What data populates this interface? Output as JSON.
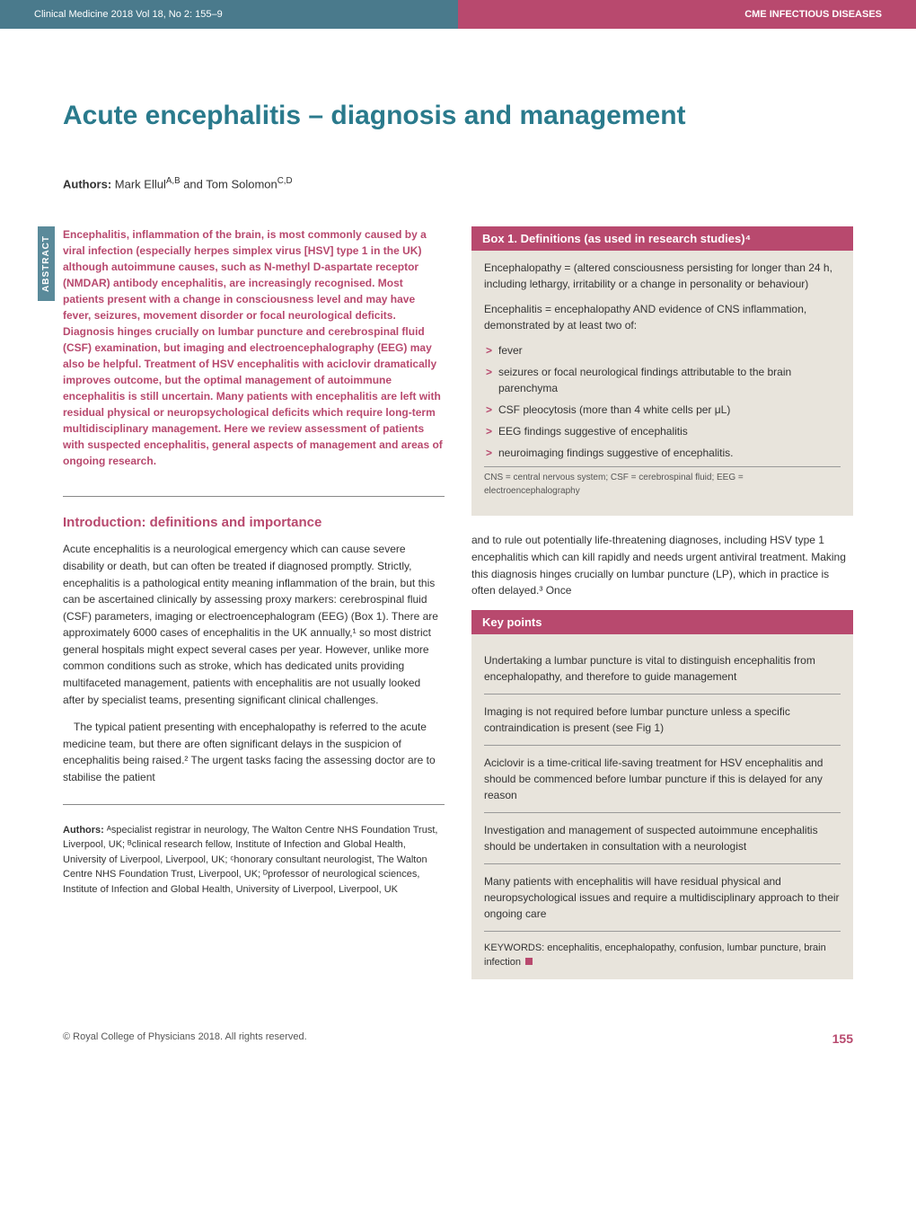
{
  "header": {
    "journal_info": "Clinical Medicine 2018 Vol 18, No 2: 155–9",
    "section": "CME INFECTIOUS DISEASES"
  },
  "title": "Acute encephalitis – diagnosis and management",
  "authors_line": {
    "label": "Authors:",
    "text": "Mark Ellul",
    "sup1": "A,B",
    "text2": " and Tom Solomon",
    "sup2": "C,D"
  },
  "abstract": {
    "tab": "ABSTRACT",
    "text": "Encephalitis, inflammation of the brain, is most commonly caused by a viral infection (especially herpes simplex virus [HSV] type 1 in the UK) although autoimmune causes, such as N-methyl D-aspartate receptor (NMDAR) antibody encephalitis, are increasingly recognised. Most patients present with a change in consciousness level and may have fever, seizures, movement disorder or focal neurological deficits. Diagnosis hinges crucially on lumbar puncture and cerebrospinal fluid (CSF) examination, but imaging and electroencephalography (EEG) may also be helpful. Treatment of HSV encephalitis with aciclovir dramatically improves outcome, but the optimal management of autoimmune encephalitis is still uncertain. Many patients with encephalitis are left with residual physical or neuropsychological deficits which require long-term multidisciplinary management. Here we review assessment of patients with suspected encephalitis, general aspects of management and areas of ongoing research."
  },
  "intro": {
    "heading": "Introduction: definitions and importance",
    "p1": "Acute encephalitis is a neurological emergency which can cause severe disability or death, but can often be treated if diagnosed promptly. Strictly, encephalitis is a pathological entity meaning inflammation of the brain, but this can be ascertained clinically by assessing proxy markers: cerebrospinal fluid (CSF) parameters, imaging or electroencephalogram (EEG) (Box 1). There are approximately 6000 cases of encephalitis in the UK annually,¹ so most district general hospitals might expect several cases per year. However, unlike more common conditions such as stroke, which has dedicated units providing multifaceted management, patients with encephalitis are not usually looked after by specialist teams, presenting significant clinical challenges.",
    "p2": "The typical patient presenting with encephalopathy is referred to the acute medicine team, but there are often significant delays in the suspicion of encephalitis being raised.² The urgent tasks facing the assessing doctor are to stabilise the patient"
  },
  "authors_detail": {
    "label": "Authors:",
    "text": " ᴬspecialist registrar in neurology, The Walton Centre NHS Foundation Trust, Liverpool, UK; ᴮclinical research fellow, Institute of Infection and Global Health, University of Liverpool, Liverpool, UK; ᶜhonorary consultant neurologist, The Walton Centre NHS Foundation Trust, Liverpool, UK; ᴰprofessor of neurological sciences, Institute of Infection and Global Health, University of Liverpool, Liverpool, UK"
  },
  "box1": {
    "title": "Box 1. Definitions (as used in research studies)⁴",
    "p1": "Encephalopathy = (altered consciousness persisting for longer than 24 h, including lethargy, irritability or a change in personality or behaviour)",
    "p2": "Encephalitis = encephalopathy AND evidence of CNS inflammation, demonstrated by at least two of:",
    "items": [
      "fever",
      "seizures or focal neurological findings attributable to the brain parenchyma",
      "CSF pleocytosis (more than 4 white cells per μL)",
      "EEG findings suggestive of encephalitis",
      "neuroimaging findings suggestive of encephalitis."
    ],
    "caption": "CNS = central nervous system; CSF = cerebrospinal fluid; EEG = electroencephalography"
  },
  "right_body": "and to rule out potentially life-threatening diagnoses, including HSV type 1 encephalitis which can kill rapidly and needs urgent antiviral treatment. Making this diagnosis hinges crucially on lumbar puncture (LP), which in practice is often delayed.³ Once",
  "keypoints": {
    "title": "Key points",
    "items": [
      "Undertaking a lumbar puncture is vital to distinguish encephalitis from encephalopathy, and therefore to guide management",
      "Imaging is not required before lumbar puncture unless a specific contraindication is present (see Fig 1)",
      "Aciclovir is a time-critical life-saving treatment for HSV encephalitis and should be commenced before lumbar puncture if this is delayed for any reason",
      "Investigation and management of suspected autoimmune encephalitis should be undertaken in consultation with a neurologist",
      "Many patients with encephalitis will have residual physical and neuropsychological issues and require a multidisciplinary approach to their ongoing care"
    ],
    "keywords": "KEYWORDS: encephalitis, encephalopathy, confusion, lumbar puncture, brain infection"
  },
  "footer": {
    "copyright": "© Royal College of Physicians 2018. All rights reserved.",
    "page": "155"
  },
  "colors": {
    "accent_teal": "#2a7a8c",
    "accent_magenta": "#b8496e",
    "box_bg": "#e8e4dc",
    "header_teal": "#4a7a8c"
  }
}
